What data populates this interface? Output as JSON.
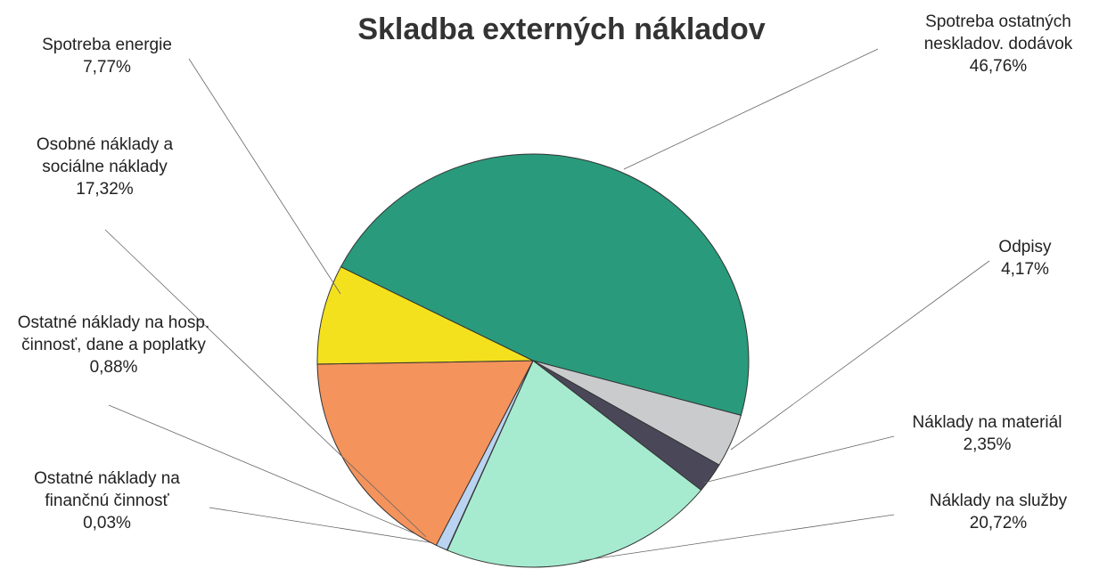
{
  "chart_data": {
    "type": "pie",
    "title": "Skladba externých nákladov",
    "categories": [
      "Spotreba ostatných neskladov. dodávok",
      "Odpisy",
      "Náklady na materiál",
      "Náklady na služby",
      "Ostatné náklady na finančnú činnosť",
      "Ostatné náklady na hosp. činnosť, dane a poplatky",
      "Osobné náklady a sociálne náklady",
      "Spotreba energie"
    ],
    "values": [
      46.76,
      4.17,
      2.35,
      20.72,
      0.03,
      0.88,
      17.32,
      7.77
    ],
    "value_labels": [
      "46,76%",
      "4,17%",
      "2,35%",
      "20,72%",
      "0,03%",
      "0,88%",
      "17,32%",
      "7,77%"
    ],
    "colors": [
      "#2a9a7c",
      "#c9cbcd",
      "#4a4858",
      "#a6ebcf",
      "#ffffff",
      "#b9d3f0",
      "#f4935c",
      "#f4e11e"
    ]
  }
}
